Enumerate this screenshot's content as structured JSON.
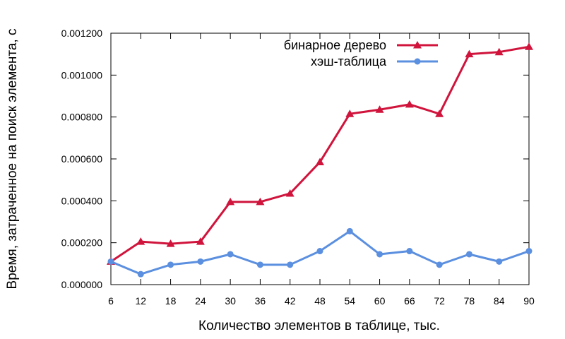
{
  "chart_data": {
    "type": "line",
    "xlabel": "Количество элементов в таблице, тыс.",
    "ylabel": "Время, затраченное на поиск элемента, с",
    "categories": [
      "6",
      "12",
      "18",
      "24",
      "30",
      "36",
      "42",
      "48",
      "54",
      "60",
      "66",
      "72",
      "78",
      "84",
      "90"
    ],
    "ylim": [
      0,
      0.0012
    ],
    "yticks": [
      "0.000000",
      "0.000200",
      "0.000400",
      "0.000600",
      "0.000800",
      "0.001000",
      "0.001200"
    ],
    "ytick_values": [
      0,
      0.0002,
      0.0004,
      0.0006,
      0.0008,
      0.001,
      0.0012
    ],
    "grid": false,
    "legend_position": "top-right",
    "series": [
      {
        "name": "бинарное дерево",
        "color": "#d0143c",
        "marker": "triangle",
        "values": [
          0.00011,
          0.000205,
          0.000195,
          0.000205,
          0.000395,
          0.000395,
          0.000435,
          0.000585,
          0.000815,
          0.000835,
          0.00086,
          0.000815,
          0.0011,
          0.00111,
          0.001135
        ]
      },
      {
        "name": "хэш-таблица",
        "color": "#5b8fdf",
        "marker": "circle",
        "values": [
          0.00011,
          5e-05,
          9.5e-05,
          0.00011,
          0.000145,
          9.5e-05,
          9.5e-05,
          0.00016,
          0.000255,
          0.000145,
          0.00016,
          9.5e-05,
          0.000145,
          0.00011,
          0.00016
        ]
      }
    ]
  }
}
